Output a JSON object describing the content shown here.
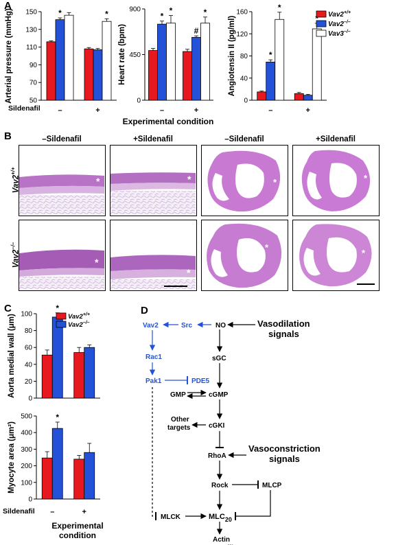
{
  "panels": {
    "A": "A",
    "B": "B",
    "C": "C",
    "D": "D"
  },
  "colors": {
    "red": "#e8191e",
    "blue": "#2352d8",
    "white": "#ffffff"
  },
  "panelA": {
    "xaxis_title": "Experimental condition",
    "sildenafil_label": "Sildenafil",
    "legend": [
      "Vav2+/+",
      "Vav2–/–",
      "Vav3–/–"
    ]
  },
  "panelB": {
    "col_titles": [
      "–Sildenafil",
      "+Sildenafil",
      "–Sildenafil",
      "+Sildenafil"
    ],
    "row_labels": [
      "Vav2+/+",
      "Vav2–/–"
    ]
  },
  "panelC": {
    "legend": [
      "Vav2+/+",
      "Vav2–/–"
    ],
    "sildenafil_label": "Sildenafil",
    "xaxis_title": [
      "Experimental",
      "condition"
    ]
  },
  "chart_data": [
    {
      "type": "bar",
      "ylabel": "Arterial pressure (mmHg)",
      "ylim": [
        50,
        150
      ],
      "yticks": [
        50,
        70,
        90,
        110,
        130,
        150
      ],
      "categories": [
        "–",
        "+"
      ],
      "series": [
        {
          "name": "Vav2+/+",
          "values": [
            116,
            108
          ],
          "errors": [
            1,
            1.5
          ],
          "marks": [
            "",
            ""
          ]
        },
        {
          "name": "Vav2–/–",
          "values": [
            141,
            107
          ],
          "errors": [
            2,
            1.5
          ],
          "marks": [
            "*",
            ""
          ]
        },
        {
          "name": "Vav3–/–",
          "values": [
            146,
            139
          ],
          "errors": [
            3,
            3
          ],
          "marks": [
            "",
            "*"
          ]
        }
      ]
    },
    {
      "type": "bar",
      "ylabel": "Heart rate (bpm)",
      "ylim": [
        0,
        900
      ],
      "yticks": [
        0,
        450,
        900
      ],
      "categories": [
        "–",
        "+"
      ],
      "series": [
        {
          "name": "Vav2+/+",
          "values": [
            490,
            480
          ],
          "errors": [
            20,
            22
          ],
          "marks": [
            "",
            ""
          ]
        },
        {
          "name": "Vav2–/–",
          "values": [
            750,
            620
          ],
          "errors": [
            30,
            15
          ],
          "marks": [
            "*",
            "#"
          ]
        },
        {
          "name": "Vav3–/–",
          "values": [
            760,
            760
          ],
          "errors": [
            75,
            60
          ],
          "marks": [
            "*",
            "*"
          ]
        }
      ]
    },
    {
      "type": "bar",
      "ylabel": "Angiotensin II (pg/ml)",
      "ylim": [
        0,
        160
      ],
      "yticks": [
        0,
        40,
        80,
        120,
        160
      ],
      "categories": [
        "–",
        "+"
      ],
      "series": [
        {
          "name": "Vav2+/+",
          "values": [
            15,
            12
          ],
          "errors": [
            1.5,
            2
          ],
          "marks": [
            "",
            ""
          ]
        },
        {
          "name": "Vav2–/–",
          "values": [
            69,
            9
          ],
          "errors": [
            4,
            1.5
          ],
          "marks": [
            "*",
            ""
          ]
        },
        {
          "name": "Vav3–/–",
          "values": [
            146,
            129
          ],
          "errors": [
            13,
            10
          ],
          "marks": [
            "*",
            "*"
          ]
        }
      ]
    },
    {
      "type": "bar",
      "ylabel": "Aorta medial wall (μm)",
      "ylim": [
        0,
        100
      ],
      "yticks": [
        0,
        20,
        40,
        60,
        80,
        100
      ],
      "categories": [
        "–",
        "+"
      ],
      "series": [
        {
          "name": "Vav2+/+",
          "values": [
            51,
            54
          ],
          "errors": [
            6,
            6
          ],
          "marks": [
            "",
            ""
          ]
        },
        {
          "name": "Vav2–/–",
          "values": [
            96,
            60
          ],
          "errors": [
            5,
            3
          ],
          "marks": [
            "*",
            ""
          ]
        }
      ]
    },
    {
      "type": "bar",
      "ylabel": "Myocyte area (μm²)",
      "ylim": [
        0,
        500
      ],
      "yticks": [
        0,
        100,
        200,
        300,
        400,
        500
      ],
      "categories": [
        "–",
        "+"
      ],
      "series": [
        {
          "name": "Vav2+/+",
          "values": [
            247,
            240
          ],
          "errors": [
            38,
            22
          ],
          "marks": [
            "",
            ""
          ]
        },
        {
          "name": "Vav2–/–",
          "values": [
            425,
            280
          ],
          "errors": [
            38,
            55
          ],
          "marks": [
            "*",
            ""
          ]
        }
      ]
    }
  ],
  "pathway": {
    "nodes": {
      "vav2": "Vav2",
      "src": "Src",
      "no": "NO",
      "vasodilation": [
        "Vasodilation",
        "signals"
      ],
      "rac1": "Rac1",
      "sgc": "sGC",
      "pak1": "Pak1",
      "pde5": "PDE5",
      "gmp": "GMP",
      "cgmp": "cGMP",
      "other": [
        "Other",
        "targets"
      ],
      "cgki": "cGKI",
      "rhoa": "RhoA",
      "vasoconstriction": [
        "Vasoconstriction",
        "signals"
      ],
      "rock": "Rock",
      "mlcp": "MLCP",
      "mlck": "MLCK",
      "mlc": "MLC",
      "mlc_sub": "20",
      "actin": [
        "Actin",
        "contractility"
      ]
    }
  }
}
